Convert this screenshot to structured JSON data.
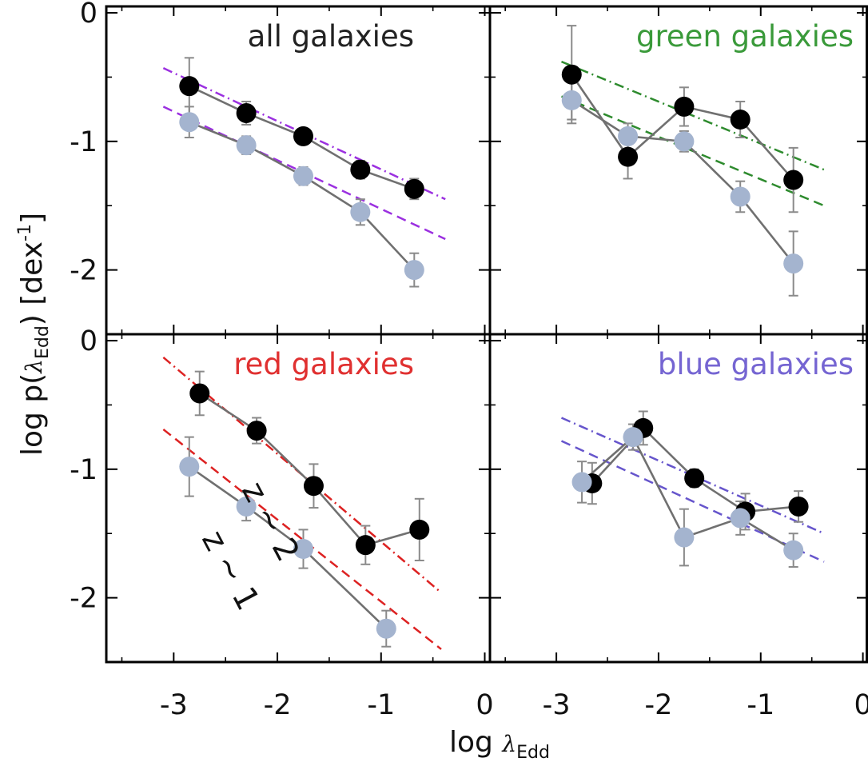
{
  "chart_data": {
    "type": "scatter",
    "layout": "2x2 grid, shared axes",
    "xlabel": "log λ_Edd",
    "ylabel": "log p(λ_Edd) [dex^-1]",
    "axes_text": {
      "xlabel_main": "log ",
      "xlabel_sym": "λ",
      "xlabel_sub": "Edd",
      "ylabel_main": "log p(",
      "ylabel_sym": "λ",
      "ylabel_sub": "Edd",
      "ylabel_close": ") [dex",
      "ylabel_sup": "-1",
      "ylabel_end": "]"
    },
    "xlim": [
      -3.65,
      0.05
    ],
    "ylim": [
      -2.5,
      0.05
    ],
    "xticks": [
      "-3",
      "-2",
      "-1",
      "0"
    ],
    "xtick_values": [
      -3,
      -2,
      -1,
      0
    ],
    "yticks": [
      "0",
      "-1",
      "-2"
    ],
    "ytick_values": [
      0,
      -1,
      -2
    ],
    "grid": false,
    "panels": [
      {
        "title": "all galaxies",
        "color": "#222222",
        "series": [
          {
            "marker": "black",
            "x": [
              -2.85,
              -2.3,
              -1.75,
              -1.2,
              -0.68
            ],
            "y": [
              -0.57,
              -0.78,
              -0.96,
              -1.22,
              -1.37
            ],
            "yerr": [
              0.22,
              0.09,
              0.06,
              0.07,
              0.08
            ]
          },
          {
            "marker": "light",
            "x": [
              -2.85,
              -2.3,
              -1.75,
              -1.2,
              -0.68
            ],
            "y": [
              -0.85,
              -1.03,
              -1.27,
              -1.55,
              -2.0
            ],
            "yerr": [
              0.12,
              0.07,
              0.07,
              0.1,
              0.13
            ]
          }
        ],
        "fits": [
          {
            "style": "dash-dot",
            "color": "#9b30e0",
            "x": [
              -3.1,
              -0.38
            ],
            "y": [
              -0.43,
              -1.45
            ]
          },
          {
            "style": "dashed",
            "color": "#9b30e0",
            "x": [
              -3.1,
              -0.38
            ],
            "y": [
              -0.73,
              -1.76
            ]
          }
        ]
      },
      {
        "title": "green galaxies",
        "color": "#3a9a3a",
        "series": [
          {
            "marker": "black",
            "x": [
              -2.85,
              -2.3,
              -1.75,
              -1.2,
              -0.68
            ],
            "y": [
              -0.48,
              -1.12,
              -0.73,
              -0.83,
              -1.3
            ],
            "yerr": [
              0.38,
              0.17,
              0.15,
              0.14,
              0.25
            ]
          },
          {
            "marker": "light",
            "x": [
              -2.85,
              -2.3,
              -1.75,
              -1.2,
              -0.68
            ],
            "y": [
              -0.68,
              -0.96,
              -1.0,
              -1.43,
              -1.95
            ],
            "yerr": [
              0.15,
              0.1,
              0.08,
              0.12,
              0.25
            ]
          }
        ],
        "fits": [
          {
            "style": "dash-dot",
            "color": "#2e8b2e",
            "x": [
              -2.95,
              -0.38
            ],
            "y": [
              -0.38,
              -1.22
            ]
          },
          {
            "style": "dashed",
            "color": "#2e8b2e",
            "x": [
              -2.95,
              -0.38
            ],
            "y": [
              -0.65,
              -1.5
            ]
          }
        ]
      },
      {
        "title": "red galaxies",
        "color": "#e03030",
        "series": [
          {
            "marker": "black",
            "x": [
              -2.75,
              -2.2,
              -1.65,
              -1.15,
              -0.63
            ],
            "y": [
              -0.41,
              -0.7,
              -1.13,
              -1.59,
              -1.47
            ],
            "yerr": [
              0.17,
              0.1,
              0.17,
              0.15,
              0.24
            ]
          },
          {
            "marker": "light",
            "x": [
              -2.85,
              -2.3,
              -1.75,
              -0.95
            ],
            "y": [
              -0.98,
              -1.29,
              -1.62,
              -2.24
            ],
            "yerr": [
              0.23,
              0.11,
              0.15,
              0.14
            ]
          }
        ],
        "fits": [
          {
            "style": "dash-dot",
            "color": "#dd2222",
            "x": [
              -3.1,
              -0.42
            ],
            "y": [
              -0.13,
              -1.96
            ]
          },
          {
            "style": "dashed",
            "color": "#dd2222",
            "x": [
              -3.1,
              -0.42
            ],
            "y": [
              -0.69,
              -2.4
            ]
          }
        ],
        "annotations": [
          "z ~ 2",
          "z ~ 1"
        ]
      },
      {
        "title": "blue galaxies",
        "color": "#7565d2",
        "series": [
          {
            "marker": "black",
            "x": [
              -2.65,
              -2.15,
              -1.65,
              -1.15,
              -0.63
            ],
            "y": [
              -1.11,
              -0.68,
              -1.07,
              -1.33,
              -1.29
            ],
            "yerr": [
              0.16,
              0.13,
              0.07,
              0.14,
              0.12
            ]
          },
          {
            "marker": "light",
            "x": [
              -2.75,
              -2.25,
              -1.75,
              -1.2,
              -0.68
            ],
            "y": [
              -1.1,
              -0.75,
              -1.53,
              -1.38,
              -1.63
            ],
            "yerr": [
              0.16,
              0.1,
              0.22,
              0.13,
              0.13
            ]
          }
        ],
        "fits": [
          {
            "style": "dash-dot",
            "color": "#6655cc",
            "x": [
              -2.95,
              -0.38
            ],
            "y": [
              -0.6,
              -1.5
            ]
          },
          {
            "style": "dashed",
            "color": "#6655cc",
            "x": [
              -2.95,
              -0.38
            ],
            "y": [
              -0.78,
              -1.72
            ]
          }
        ]
      }
    ],
    "colors": {
      "black_marker": "#000000",
      "light_marker": "#a4b4cf",
      "connect_line": "#707070",
      "errorbar": "#8a8a8a",
      "axis": "#000000"
    }
  }
}
